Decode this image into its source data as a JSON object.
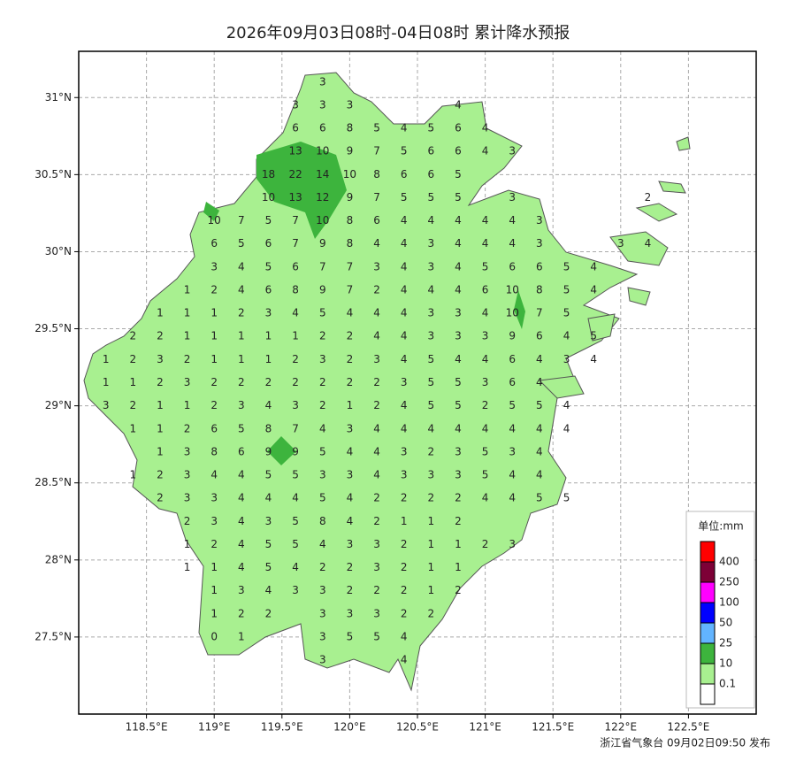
{
  "map": {
    "title": "2026年09月03日08时-04日08时 累计降水预报",
    "footer": "浙江省气象台 09月02日09:50 发布",
    "xlim": [
      118,
      123
    ],
    "ylim": [
      27,
      31.3
    ],
    "xticks": [
      {
        "value": 118.5,
        "label": "118.5°E"
      },
      {
        "value": 119,
        "label": "119°E"
      },
      {
        "value": 119.5,
        "label": "119.5°E"
      },
      {
        "value": 120,
        "label": "120°E"
      },
      {
        "value": 120.5,
        "label": "120.5°E"
      },
      {
        "value": 121,
        "label": "121°E"
      },
      {
        "value": 121.5,
        "label": "121.5°E"
      },
      {
        "value": 122,
        "label": "122°E"
      },
      {
        "value": 122.5,
        "label": "122.5°E"
      }
    ],
    "yticks": [
      {
        "value": 27.5,
        "label": "27.5°N"
      },
      {
        "value": 28,
        "label": "28°N"
      },
      {
        "value": 28.5,
        "label": "28.5°N"
      },
      {
        "value": 29,
        "label": "29°N"
      },
      {
        "value": 29.5,
        "label": "29.5°N"
      },
      {
        "value": 30,
        "label": "30°N"
      },
      {
        "value": 30.5,
        "label": "30.5°N"
      },
      {
        "value": 31,
        "label": "31°N"
      }
    ],
    "grid": true,
    "legend": {
      "title": "单位:mm",
      "levels": [
        {
          "value": 400,
          "color": "#ff0000"
        },
        {
          "value": 250,
          "color": "#7d0036"
        },
        {
          "value": 100,
          "color": "#ff00ff"
        },
        {
          "value": 50,
          "color": "#0000ff"
        },
        {
          "value": 25,
          "color": "#62b4ff"
        },
        {
          "value": 10,
          "color": "#3db43d"
        },
        {
          "value": 0.1,
          "color": "#a8f090"
        }
      ]
    },
    "lons": [
      118.2,
      118.4,
      118.6,
      118.8,
      119,
      119.2,
      119.4,
      119.6,
      119.8,
      120,
      120.2,
      120.4,
      120.6,
      120.8,
      121,
      121.2,
      121.4,
      121.6,
      121.8,
      122,
      122.2
    ],
    "lats": [
      31.1,
      30.95,
      30.8,
      30.65,
      30.5,
      30.35,
      30.2,
      30.05,
      29.9,
      29.75,
      29.6,
      29.45,
      29.3,
      29.15,
      29,
      28.85,
      28.7,
      28.55,
      28.4,
      28.25,
      28.1,
      27.95,
      27.8,
      27.65,
      27.5,
      27.35
    ],
    "values": [
      [
        null,
        null,
        null,
        null,
        null,
        null,
        null,
        null,
        3,
        null,
        null,
        null,
        null,
        null,
        null,
        null,
        null,
        null,
        null,
        null,
        null
      ],
      [
        null,
        null,
        null,
        null,
        null,
        null,
        null,
        3,
        3,
        3,
        null,
        null,
        null,
        4,
        null,
        null,
        null,
        null,
        null,
        null,
        null
      ],
      [
        null,
        null,
        null,
        null,
        null,
        null,
        null,
        6,
        6,
        8,
        5,
        4,
        5,
        6,
        4,
        null,
        null,
        null,
        null,
        null,
        null
      ],
      [
        null,
        null,
        null,
        null,
        null,
        null,
        null,
        13,
        10,
        9,
        7,
        5,
        6,
        6,
        4,
        3,
        null,
        null,
        null,
        null,
        null
      ],
      [
        null,
        null,
        null,
        null,
        null,
        null,
        18,
        22,
        14,
        10,
        8,
        6,
        6,
        5,
        null,
        null,
        null,
        null,
        null,
        null,
        null
      ],
      [
        null,
        null,
        null,
        null,
        null,
        null,
        10,
        13,
        12,
        9,
        7,
        5,
        5,
        5,
        null,
        3,
        null,
        null,
        null,
        null,
        2
      ],
      [
        null,
        null,
        null,
        null,
        10,
        7,
        5,
        7,
        10,
        8,
        6,
        4,
        4,
        4,
        4,
        4,
        3,
        null,
        null,
        null,
        null
      ],
      [
        null,
        null,
        null,
        null,
        6,
        5,
        6,
        7,
        9,
        8,
        4,
        4,
        3,
        4,
        4,
        4,
        3,
        null,
        null,
        3,
        4
      ],
      [
        null,
        null,
        null,
        null,
        3,
        4,
        5,
        6,
        7,
        7,
        3,
        4,
        3,
        4,
        5,
        6,
        6,
        5,
        4,
        null,
        null
      ],
      [
        null,
        null,
        null,
        1,
        2,
        4,
        6,
        8,
        9,
        7,
        2,
        4,
        4,
        4,
        6,
        10,
        8,
        5,
        4,
        null,
        null
      ],
      [
        null,
        null,
        1,
        1,
        1,
        2,
        3,
        4,
        5,
        4,
        4,
        4,
        3,
        3,
        4,
        10,
        7,
        5,
        null,
        null,
        null
      ],
      [
        null,
        2,
        2,
        1,
        1,
        1,
        1,
        1,
        2,
        2,
        4,
        4,
        3,
        3,
        3,
        9,
        6,
        4,
        5,
        null,
        null
      ],
      [
        1,
        2,
        3,
        2,
        1,
        1,
        1,
        2,
        3,
        2,
        3,
        4,
        5,
        4,
        4,
        6,
        4,
        3,
        4,
        null,
        null
      ],
      [
        1,
        1,
        2,
        3,
        2,
        2,
        2,
        2,
        2,
        2,
        2,
        3,
        5,
        5,
        3,
        6,
        4,
        null,
        null,
        null,
        null
      ],
      [
        3,
        2,
        1,
        1,
        2,
        3,
        4,
        3,
        2,
        1,
        2,
        4,
        5,
        5,
        2,
        5,
        5,
        4,
        null,
        null,
        null
      ],
      [
        null,
        1,
        1,
        2,
        6,
        5,
        8,
        7,
        4,
        3,
        4,
        4,
        4,
        4,
        4,
        4,
        4,
        4,
        null,
        null,
        null
      ],
      [
        null,
        null,
        1,
        3,
        8,
        6,
        9,
        9,
        5,
        4,
        4,
        3,
        2,
        3,
        5,
        3,
        4,
        null,
        null,
        null,
        null
      ],
      [
        null,
        1,
        2,
        3,
        4,
        4,
        5,
        5,
        3,
        3,
        4,
        3,
        3,
        3,
        5,
        4,
        4,
        null,
        null,
        null,
        null
      ],
      [
        null,
        null,
        2,
        3,
        3,
        4,
        4,
        4,
        5,
        4,
        2,
        2,
        2,
        2,
        4,
        4,
        5,
        5,
        null,
        null,
        null
      ],
      [
        null,
        null,
        null,
        2,
        3,
        4,
        3,
        5,
        8,
        4,
        2,
        1,
        1,
        2,
        null,
        null,
        null,
        null,
        null,
        null,
        null
      ],
      [
        null,
        null,
        null,
        1,
        2,
        4,
        5,
        5,
        4,
        3,
        3,
        2,
        1,
        1,
        2,
        3,
        null,
        null,
        null,
        null,
        null
      ],
      [
        null,
        null,
        null,
        1,
        1,
        4,
        5,
        4,
        2,
        2,
        3,
        2,
        1,
        1,
        null,
        null,
        null,
        null,
        null,
        null,
        null
      ],
      [
        null,
        null,
        null,
        null,
        1,
        3,
        4,
        3,
        3,
        2,
        2,
        2,
        1,
        2,
        null,
        null,
        null,
        null,
        null,
        null,
        null
      ],
      [
        null,
        null,
        null,
        null,
        1,
        2,
        2,
        null,
        3,
        3,
        3,
        2,
        2,
        null,
        null,
        null,
        null,
        null,
        null,
        null,
        null
      ],
      [
        null,
        null,
        null,
        null,
        0,
        1,
        null,
        null,
        3,
        5,
        5,
        4,
        null,
        null,
        null,
        null,
        null,
        null,
        null,
        null,
        null
      ],
      [
        null,
        null,
        null,
        null,
        null,
        null,
        null,
        null,
        3,
        null,
        null,
        4,
        null,
        null,
        null,
        null,
        null,
        null,
        null,
        null,
        null
      ]
    ]
  }
}
